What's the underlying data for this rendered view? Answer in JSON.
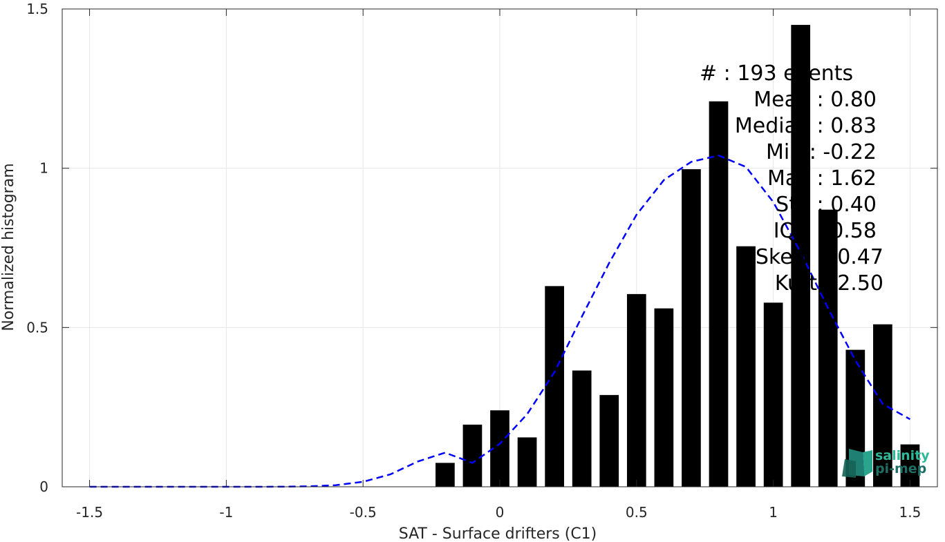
{
  "chart_data": {
    "type": "bar",
    "xlabel": "SAT - Surface drifters (C1)",
    "ylabel": "Normalized histogram",
    "xlim": [
      -1.6,
      1.6
    ],
    "ylim": [
      0,
      1.5
    ],
    "grid": true,
    "xticks": [
      -1.5,
      -1,
      -0.5,
      0,
      0.5,
      1,
      1.5
    ],
    "xtick_labels": [
      "-1.5",
      "-1",
      "-0.5",
      "0",
      "0.5",
      "1",
      "1.5"
    ],
    "yticks": [
      0,
      0.5,
      1,
      1.5
    ],
    "ytick_labels": [
      "0",
      "0.5",
      "1",
      "1.5"
    ],
    "bar_width": 0.07,
    "series": [
      {
        "kind": "histogram",
        "color": "#000000",
        "x": [
          -0.2,
          -0.1,
          0.0,
          0.1,
          0.2,
          0.3,
          0.4,
          0.5,
          0.6,
          0.7,
          0.8,
          0.9,
          1.0,
          1.1,
          1.2,
          1.3,
          1.4,
          1.5
        ],
        "values": [
          0.075,
          0.195,
          0.24,
          0.155,
          0.63,
          0.365,
          0.288,
          0.605,
          0.56,
          0.997,
          1.21,
          0.755,
          0.578,
          1.45,
          0.87,
          0.43,
          0.51,
          0.133
        ]
      },
      {
        "kind": "gaussian-fit",
        "color": "#0000ff",
        "style": "dashed",
        "x": [
          -1.5,
          -1.4,
          -1.3,
          -1.2,
          -1.1,
          -1.0,
          -0.9,
          -0.8,
          -0.7,
          -0.6,
          -0.5,
          -0.4,
          -0.3,
          -0.2,
          -0.1,
          0.0,
          0.1,
          0.2,
          0.3,
          0.4,
          0.5,
          0.6,
          0.7,
          0.8,
          0.9,
          1.0,
          1.1,
          1.2,
          1.3,
          1.4,
          1.5
        ],
        "values": [
          0.0,
          0.0,
          0.0,
          0.0,
          0.0,
          0.0,
          0.0,
          0.0003,
          0.0014,
          0.0049,
          0.0155,
          0.0391,
          0.0793,
          0.107,
          0.075,
          0.135,
          0.228,
          0.36,
          0.534,
          0.703,
          0.854,
          0.963,
          1.02,
          1.04,
          1.004,
          0.894,
          0.736,
          0.561,
          0.397,
          0.26,
          0.212
        ]
      }
    ],
    "stats": [
      {
        "label": "#  : 193 events"
      },
      {
        "label": "Mean : 0.80"
      },
      {
        "label": "Median : 0.83"
      },
      {
        "label": "Min : -0.22"
      },
      {
        "label": "Max : 1.62"
      },
      {
        "label": "Std : 0.40"
      },
      {
        "label": "IQR : 0.58"
      },
      {
        "label": "Skew : -0.47"
      },
      {
        "label": "Kurt : 2.50"
      }
    ],
    "stats_visible": [
      "#  : 193  events",
      "Mea    : 0.80",
      "Media    : 0.83",
      "Mi    : -0.22",
      "Ma    : 1.62",
      "St    0.40",
      "IQ    0.58",
      "kew    0.47",
      "Ku    2.50"
    ]
  },
  "logo": {
    "line1": "salinity",
    "line2": "pi-mep",
    "color1": "#2fb99a",
    "color2": "#1f6f66"
  }
}
